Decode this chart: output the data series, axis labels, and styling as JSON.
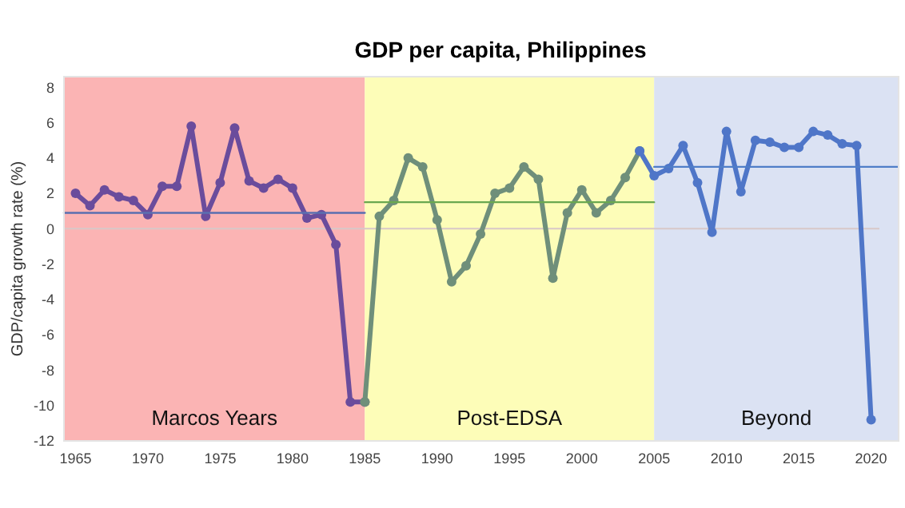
{
  "chart_data": {
    "type": "line",
    "title": "GDP per capita, Philippines",
    "ylabel": "GDP/capita growth rate (%)",
    "xlim": [
      1964.2,
      2021.9
    ],
    "ylim": [
      -12,
      8.6
    ],
    "xticks": [
      1965,
      1970,
      1975,
      1980,
      1985,
      1990,
      1995,
      2000,
      2005,
      2010,
      2015,
      2020
    ],
    "yticks": [
      -12,
      -10,
      -8,
      -6,
      -4,
      -2,
      0,
      2,
      4,
      6,
      8
    ],
    "grid": false,
    "marker": "circle",
    "bands": [
      {
        "axis": "x",
        "from": 1964.2,
        "to": 1985,
        "label": "Marcos Years",
        "color": "#fbb4b4"
      },
      {
        "axis": "x",
        "from": 1985,
        "to": 2005,
        "label": "Post-EDSA",
        "color": "#fdfdb8"
      },
      {
        "axis": "x",
        "from": 2005,
        "to": 2021.9,
        "label": "Beyond",
        "color": "#dbe2f3"
      }
    ],
    "ref_lines": [
      {
        "axis": "y",
        "value": 0,
        "color": "#d8c8c8"
      }
    ],
    "series": [
      {
        "color": "#6a4c9c",
        "x": [
          1965,
          1966,
          1967,
          1968,
          1969,
          1970,
          1971,
          1972,
          1973,
          1974,
          1975,
          1976,
          1977,
          1978,
          1979,
          1980,
          1981,
          1982,
          1983,
          1984,
          1985
        ],
        "values": [
          2.0,
          1.3,
          2.2,
          1.8,
          1.6,
          0.8,
          2.4,
          2.4,
          5.8,
          0.7,
          2.6,
          5.7,
          2.7,
          2.3,
          2.8,
          2.3,
          0.6,
          0.8,
          -0.9,
          -9.8,
          -9.8
        ]
      },
      {
        "color": "#6f8f7a",
        "x": [
          1985,
          1986,
          1987,
          1988,
          1989,
          1990,
          1991,
          1992,
          1993,
          1994,
          1995,
          1996,
          1997,
          1998,
          1999,
          2000,
          2001,
          2002,
          2003,
          2004
        ],
        "values": [
          -9.8,
          0.7,
          1.6,
          4.0,
          3.5,
          0.5,
          -3.0,
          -2.1,
          -0.3,
          2.0,
          2.3,
          3.5,
          2.8,
          -2.8,
          0.9,
          2.2,
          0.9,
          1.6,
          2.9,
          4.4
        ]
      },
      {
        "color": "#4f76c8",
        "x": [
          2004,
          2005,
          2006,
          2007,
          2008,
          2009,
          2010,
          2011,
          2012,
          2013,
          2014,
          2015,
          2016,
          2017,
          2018,
          2019,
          2020
        ],
        "values": [
          4.4,
          3.0,
          3.4,
          4.7,
          2.6,
          -0.2,
          5.5,
          2.1,
          5.0,
          4.9,
          4.6,
          4.6,
          5.5,
          5.3,
          4.8,
          4.7,
          -10.8
        ]
      },
      {
        "type": "line",
        "marker": "none",
        "color": "#5a6fb0",
        "x": [
          1964.2,
          1985
        ],
        "values": [
          0.9,
          0.9
        ]
      },
      {
        "type": "line",
        "marker": "none",
        "color": "#6aa84f",
        "x": [
          1985,
          2005
        ],
        "values": [
          1.5,
          1.5
        ]
      },
      {
        "type": "line",
        "marker": "none",
        "color": "#4f7ec8",
        "x": [
          2005,
          2021.9
        ],
        "values": [
          3.5,
          3.5
        ]
      }
    ]
  }
}
